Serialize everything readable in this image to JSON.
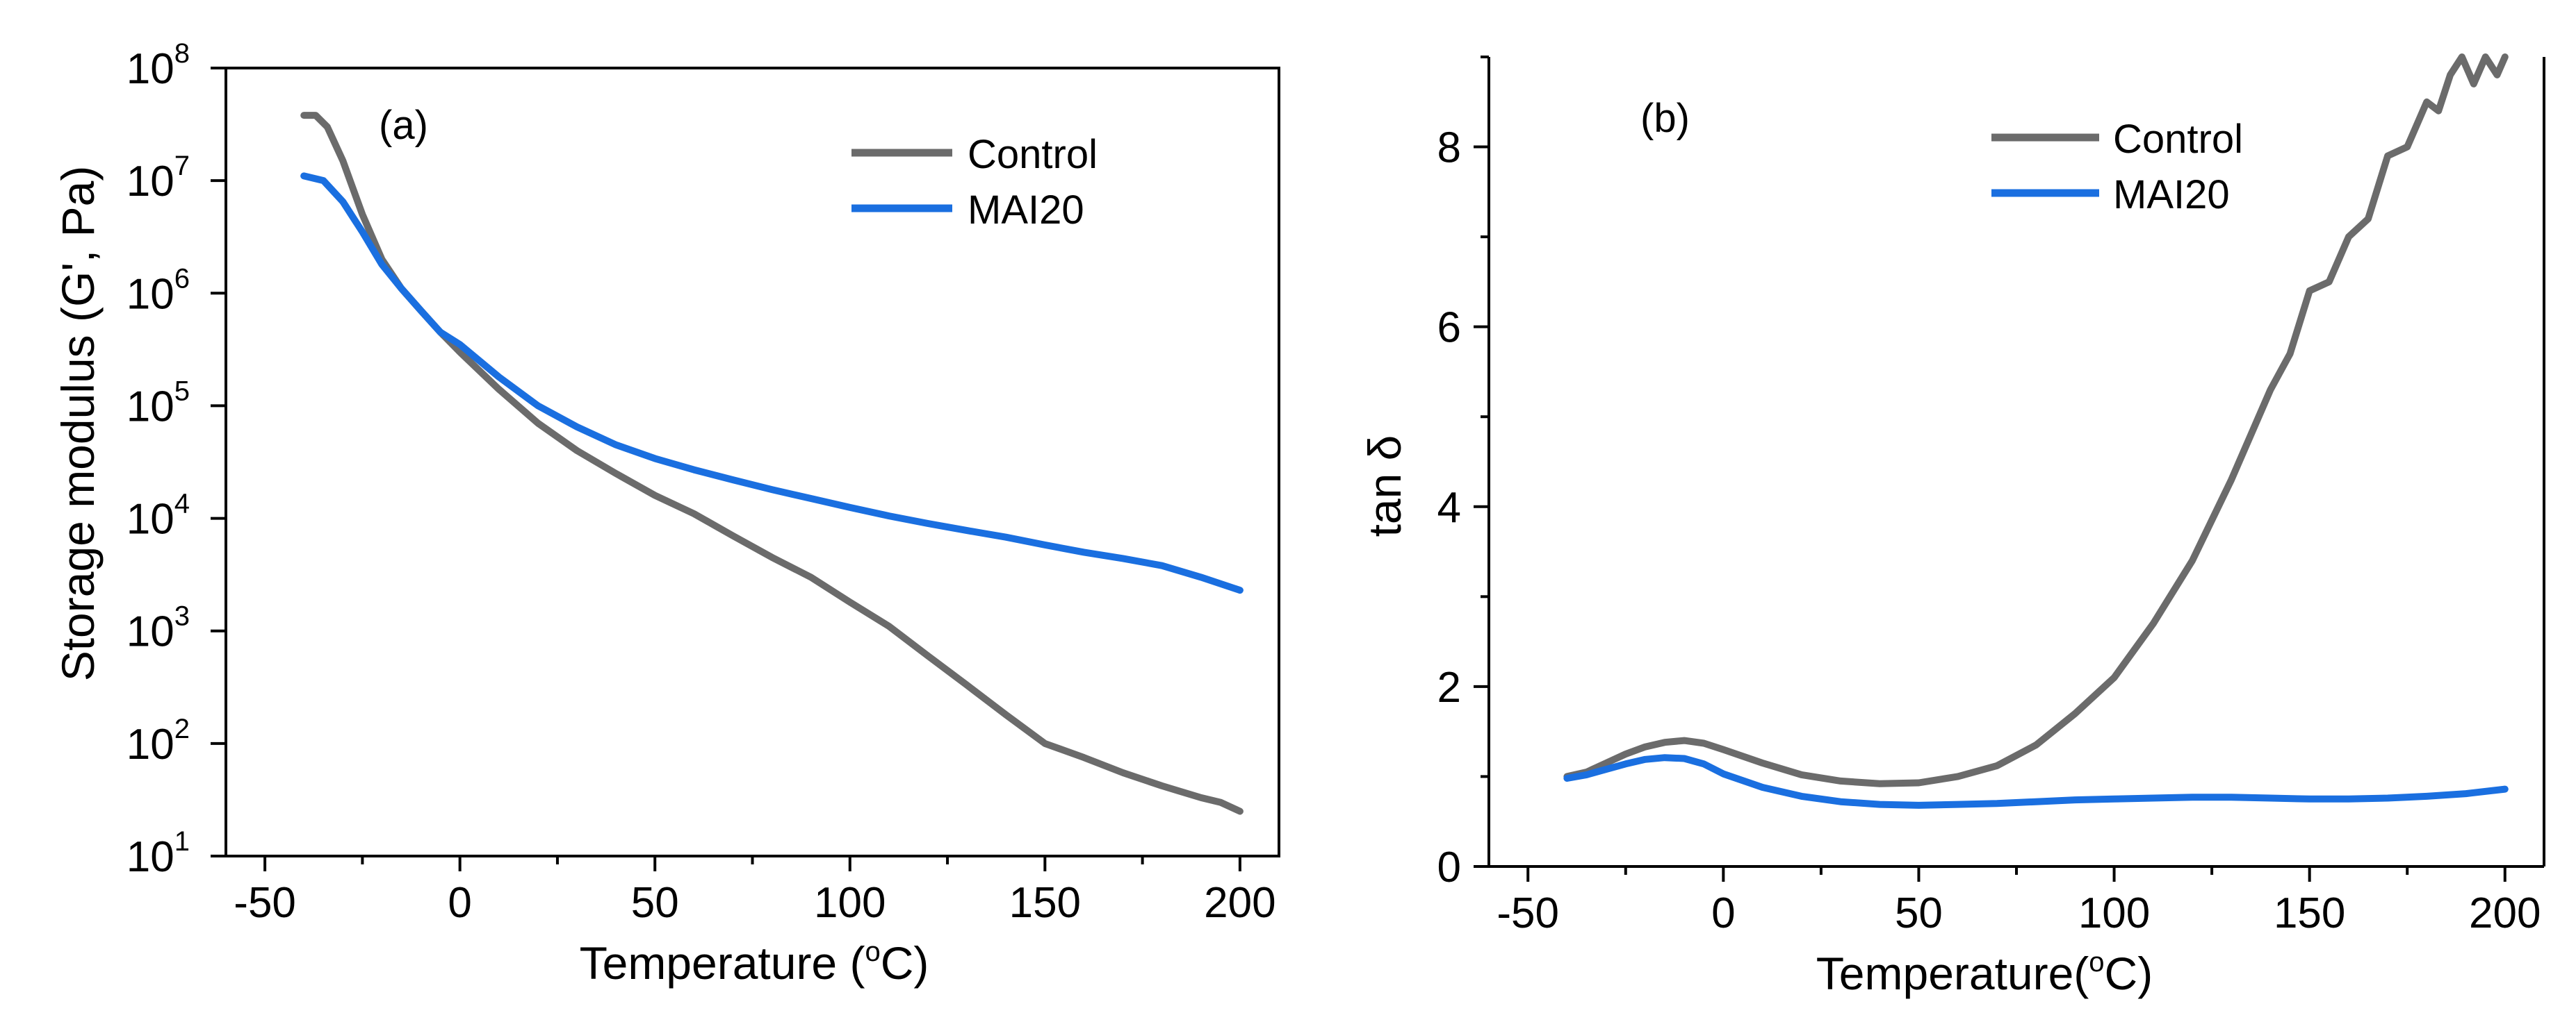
{
  "colors": {
    "control": "#6b6b6b",
    "mai20": "#1a6fe0",
    "axis": "#000000"
  },
  "chart_data": [
    {
      "type": "line",
      "panel_label": "(a)",
      "xlabel": "Temperature (",
      "xlabel_sup": "o",
      "xlabel_tail": "C)",
      "ylabel": "Storage modulus (G', Pa)",
      "xlim": [
        -60,
        210
      ],
      "ylim": [
        10,
        100000000
      ],
      "yscale": "log",
      "xticks": [
        -50,
        0,
        50,
        100,
        150,
        200
      ],
      "xtick_labels": [
        "-50",
        "0",
        "50",
        "100",
        "150",
        "200"
      ],
      "ytick_base": "10",
      "ytick_exps": [
        "1",
        "2",
        "3",
        "4",
        "5",
        "6",
        "7",
        "8"
      ],
      "legend": "top-right",
      "grid": false,
      "series": [
        {
          "name": "Control",
          "x": [
            -40,
            -37,
            -34,
            -30,
            -25,
            -20,
            -15,
            -10,
            -5,
            0,
            10,
            20,
            30,
            40,
            50,
            60,
            70,
            80,
            90,
            100,
            110,
            120,
            130,
            140,
            150,
            160,
            170,
            180,
            190,
            195,
            200
          ],
          "y": [
            38000000,
            38000000,
            30000000,
            15000000,
            5000000,
            2000000,
            1100000,
            700000,
            450000,
            300000,
            140000,
            70000,
            40000,
            25000,
            16000,
            11000,
            7000,
            4500,
            3000,
            1800,
            1100,
            600,
            330,
            180,
            100,
            75,
            55,
            42,
            33,
            30,
            25
          ]
        },
        {
          "name": "MAI20",
          "x": [
            -40,
            -35,
            -30,
            -25,
            -20,
            -15,
            -10,
            -5,
            0,
            10,
            20,
            30,
            40,
            50,
            60,
            70,
            80,
            90,
            100,
            110,
            120,
            130,
            140,
            150,
            160,
            170,
            180,
            190,
            200
          ],
          "y": [
            11000000,
            10000000,
            6500000,
            3500000,
            1800000,
            1100000,
            700000,
            450000,
            350000,
            180000,
            100000,
            65000,
            45000,
            34000,
            27000,
            22000,
            18000,
            15000,
            12500,
            10500,
            9000,
            7800,
            6800,
            5800,
            5000,
            4400,
            3800,
            3000,
            2300
          ]
        }
      ]
    },
    {
      "type": "line",
      "panel_label": "(b)",
      "xlabel": "Temperature(",
      "xlabel_sup": "o",
      "xlabel_tail": "C)",
      "ylabel": "tan δ",
      "xlim": [
        -60,
        210
      ],
      "ylim": [
        0,
        9
      ],
      "yscale": "linear",
      "xticks": [
        -50,
        0,
        50,
        100,
        150,
        200
      ],
      "xtick_labels": [
        "-50",
        "0",
        "50",
        "100",
        "150",
        "200"
      ],
      "yticks": [
        0,
        2,
        4,
        6,
        8
      ],
      "ytick_labels": [
        "0",
        "2",
        "4",
        "6",
        "8"
      ],
      "legend": "top-right",
      "grid": false,
      "series": [
        {
          "name": "Control",
          "x": [
            -40,
            -35,
            -30,
            -25,
            -20,
            -15,
            -10,
            -5,
            0,
            10,
            20,
            30,
            40,
            50,
            60,
            70,
            80,
            90,
            100,
            110,
            120,
            130,
            140,
            145,
            150,
            155,
            160,
            165,
            170,
            175,
            180,
            183,
            186,
            189,
            192,
            195,
            198,
            200
          ],
          "y": [
            1.0,
            1.05,
            1.15,
            1.25,
            1.33,
            1.38,
            1.4,
            1.37,
            1.3,
            1.15,
            1.02,
            0.95,
            0.92,
            0.93,
            1.0,
            1.12,
            1.35,
            1.7,
            2.1,
            2.7,
            3.4,
            4.3,
            5.3,
            5.7,
            6.4,
            6.5,
            7.0,
            7.2,
            7.9,
            8.0,
            8.5,
            8.4,
            8.8,
            9.0,
            8.7,
            9.0,
            8.8,
            9.0
          ]
        },
        {
          "name": "MAI20",
          "x": [
            -40,
            -35,
            -30,
            -25,
            -20,
            -15,
            -10,
            -5,
            0,
            10,
            20,
            30,
            40,
            50,
            60,
            70,
            80,
            90,
            100,
            110,
            120,
            130,
            140,
            150,
            160,
            170,
            180,
            190,
            200
          ],
          "y": [
            0.98,
            1.02,
            1.08,
            1.14,
            1.19,
            1.21,
            1.2,
            1.14,
            1.03,
            0.88,
            0.78,
            0.72,
            0.69,
            0.68,
            0.69,
            0.7,
            0.72,
            0.74,
            0.75,
            0.76,
            0.77,
            0.77,
            0.76,
            0.75,
            0.75,
            0.76,
            0.78,
            0.81,
            0.86
          ]
        }
      ]
    }
  ]
}
